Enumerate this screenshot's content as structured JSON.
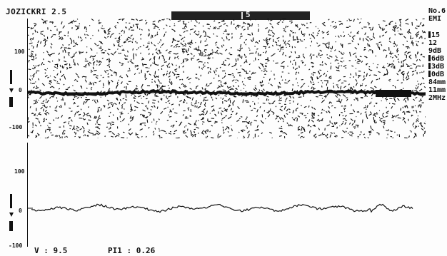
{
  "header": {
    "title": "JOZICKRI 2.5",
    "bar_label": "5"
  },
  "spectrum": {
    "y_ticks": [
      "100",
      "0",
      "-100"
    ]
  },
  "waveform": {
    "y_ticks": [
      "100",
      "0",
      "-100"
    ]
  },
  "right_panel": {
    "items": [
      {
        "text": "No.6",
        "has_bar": false
      },
      {
        "text": "EMI",
        "has_bar": false
      },
      {
        "text": "15",
        "has_bar": true
      },
      {
        "text": "12",
        "has_bar": false
      },
      {
        "text": "9dB",
        "has_bar": false
      },
      {
        "text": "6dB",
        "has_bar": true
      },
      {
        "text": "3dB",
        "has_bar": true
      },
      {
        "text": "0dB",
        "has_bar": true
      },
      {
        "text": "84mm",
        "has_bar": false
      },
      {
        "text": "11mm",
        "has_bar": false
      },
      {
        "text": "2MHz",
        "has_bar": false
      }
    ]
  },
  "readouts": {
    "velocity": "V : 9.5",
    "index": "PI1 : 0.26"
  },
  "colors": {
    "foreground": "#111111",
    "background": "#fdfdfd"
  }
}
